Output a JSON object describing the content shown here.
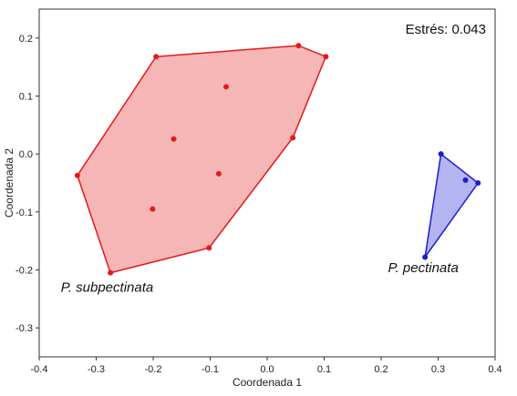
{
  "chart_data": {
    "type": "scatter",
    "title": "",
    "xlabel": "Coordenada 1",
    "ylabel": "Coordenada 2",
    "xlim": [
      -0.4,
      0.4
    ],
    "ylim": [
      -0.35,
      0.25
    ],
    "xticks": [
      -0.4,
      -0.3,
      -0.2,
      -0.1,
      0.0,
      0.1,
      0.2,
      0.3,
      0.4
    ],
    "yticks": [
      -0.3,
      -0.2,
      -0.1,
      0.0,
      0.1,
      0.2
    ],
    "xtick_labels": [
      "-0.4",
      "-0.3",
      "-0.2",
      "-0.1",
      "0.0",
      "0.1",
      "0.2",
      "0.3",
      "0.4"
    ],
    "ytick_labels": [
      "-0.3",
      "-0.2",
      "-0.1",
      "0.0",
      "0.1",
      "0.2"
    ],
    "grid": false,
    "annotation": "Estrés: 0.043",
    "series": [
      {
        "name": "P. subpectinata",
        "color": "#e31a1c",
        "fill": "#f7b6b6",
        "points": [
          [
            -0.195,
            0.168
          ],
          [
            0.055,
            0.187
          ],
          [
            0.103,
            0.168
          ],
          [
            0.045,
            0.028
          ],
          [
            -0.102,
            -0.162
          ],
          [
            -0.275,
            -0.205
          ],
          [
            -0.333,
            -0.037
          ],
          [
            -0.072,
            0.116
          ],
          [
            -0.164,
            0.026
          ],
          [
            -0.085,
            -0.034
          ],
          [
            -0.201,
            -0.095
          ]
        ],
        "hull": [
          [
            -0.195,
            0.168
          ],
          [
            0.055,
            0.187
          ],
          [
            0.103,
            0.168
          ],
          [
            0.045,
            0.028
          ],
          [
            -0.102,
            -0.162
          ],
          [
            -0.275,
            -0.205
          ],
          [
            -0.333,
            -0.037
          ]
        ]
      },
      {
        "name": "P. pectinata",
        "color": "#1c1ccc",
        "fill": "#b4b4f2",
        "points": [
          [
            0.305,
            0.0
          ],
          [
            0.37,
            -0.05
          ],
          [
            0.277,
            -0.178
          ],
          [
            0.348,
            -0.045
          ]
        ],
        "hull": [
          [
            0.305,
            0.0
          ],
          [
            0.37,
            -0.05
          ],
          [
            0.277,
            -0.178
          ]
        ]
      }
    ]
  }
}
